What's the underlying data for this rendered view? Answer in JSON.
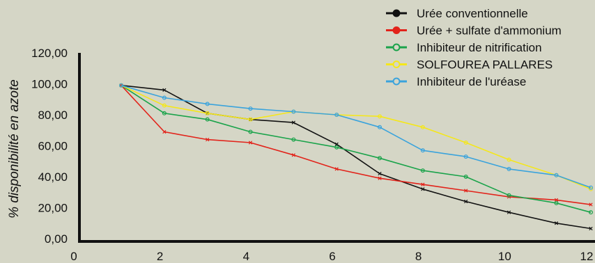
{
  "chart_data": {
    "type": "line",
    "title": "",
    "xlabel": "",
    "ylabel": "% disponibilité en azote",
    "xlim": [
      0,
      12
    ],
    "ylim": [
      0,
      120
    ],
    "x_ticks": [
      "0",
      "2",
      "4",
      "6",
      "8",
      "10",
      "12"
    ],
    "y_ticks": [
      "0,00",
      "20,00",
      "40,00",
      "60,00",
      "80,00",
      "100,00",
      "120,00"
    ],
    "legend_position": "top-right",
    "grid": false,
    "series": [
      {
        "name": "Urée conventionnelle",
        "color": "#111111",
        "marker": "x",
        "x": [
          1.1,
          2.1,
          3.1,
          4.1,
          5.1,
          6.1,
          7.1,
          8.1,
          9.1,
          10.1,
          11.2,
          12.0
        ],
        "y": [
          99,
          96,
          81,
          77,
          75,
          61,
          42,
          32,
          24,
          17,
          10,
          6.5
        ]
      },
      {
        "name": "Urée + sulfate d'ammonium",
        "color": "#e2231a",
        "marker": "x",
        "x": [
          1.1,
          2.1,
          3.1,
          4.1,
          5.1,
          6.1,
          7.1,
          8.1,
          9.1,
          10.1,
          11.2,
          12.0
        ],
        "y": [
          99,
          69,
          64,
          62,
          54,
          45,
          39,
          35,
          31,
          27,
          25,
          22
        ]
      },
      {
        "name": "Inhibiteur de nitrification",
        "color": "#1aa34a",
        "marker": "o",
        "x": [
          1.1,
          2.1,
          3.1,
          4.1,
          5.1,
          6.1,
          7.1,
          8.1,
          9.1,
          10.1,
          11.2,
          12.0
        ],
        "y": [
          99,
          81,
          77,
          69,
          64,
          59,
          52,
          44,
          40,
          28,
          23,
          17
        ]
      },
      {
        "name": "SOLFOUREA PALLARES",
        "color": "#f5e71a",
        "marker": "o",
        "x": [
          1.1,
          2.1,
          3.1,
          4.1,
          5.1,
          6.1,
          7.1,
          8.1,
          9.1,
          10.1,
          11.2,
          12.0
        ],
        "y": [
          99,
          86,
          81,
          77,
          82,
          80,
          79,
          72,
          62,
          51,
          41,
          32
        ]
      },
      {
        "name": "Inhibiteur de l'uréase",
        "color": "#3aa3dc",
        "marker": "o",
        "x": [
          1.1,
          2.1,
          3.1,
          4.1,
          5.1,
          6.1,
          7.1,
          8.1,
          9.1,
          10.1,
          11.2,
          12.0
        ],
        "y": [
          99,
          91,
          87,
          84,
          82,
          80,
          72,
          57,
          53,
          45,
          41,
          33
        ]
      }
    ]
  }
}
